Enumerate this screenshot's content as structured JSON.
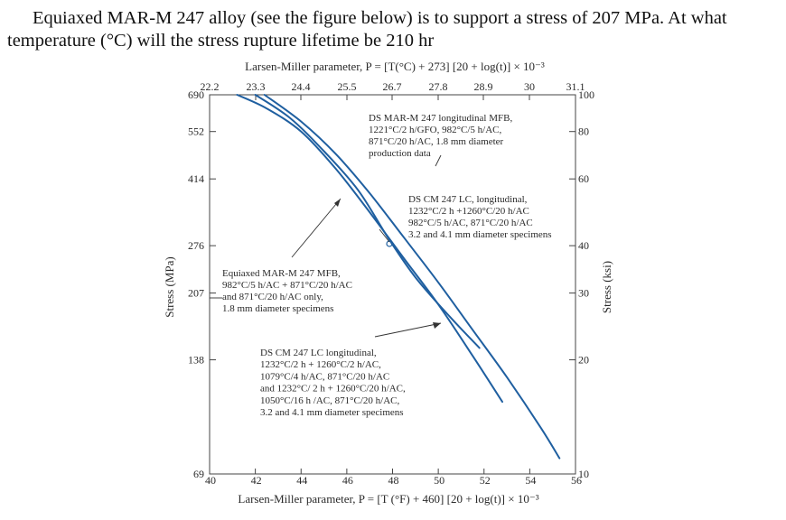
{
  "question": {
    "line1": "Equiaxed MAR-M 247 alloy (see the figure below) is to support a stress of 207 MPa. At what",
    "line2": "temperature (°C) will the stress rupture lifetime be 210 hr"
  },
  "chart_data": {
    "type": "line",
    "top_axis_label": "Larsen-Miller parameter, P = [T(°C) + 273] [20 + log(t)] × 10⁻³",
    "bottom_axis_label": "Larsen-Miller parameter, P = [T (°F) + 460] [20 + log(t)] × 10⁻³",
    "left_axis_label": "Stress (MPa)",
    "right_axis_label": "Stress (ksi)",
    "top_ticks": [
      "22.2",
      "23.3",
      "24.4",
      "25.5",
      "26.7",
      "27.8",
      "28.9",
      "30",
      "31.1"
    ],
    "bottom_ticks": [
      "40",
      "42",
      "44",
      "46",
      "48",
      "50",
      "52",
      "54",
      "56"
    ],
    "left_ticks": [
      "690",
      "552",
      "414",
      "276",
      "207",
      "138",
      "69"
    ],
    "right_ticks": [
      "100",
      "80",
      "60",
      "40",
      "30",
      "20",
      "10"
    ],
    "xlim": [
      40,
      56
    ],
    "ylim_ksi": [
      10,
      100
    ],
    "yscale": "log",
    "grid": false,
    "series": [
      {
        "name": "Equiaxed MAR-M 247",
        "x": [
          41.2,
          42.5,
          44,
          45.5,
          47,
          48.5,
          50,
          51.5,
          52.8
        ],
        "y": [
          100,
          92,
          80,
          64,
          49,
          37,
          28,
          20.5,
          15.5
        ]
      },
      {
        "name": "DS MAR-M 247",
        "x": [
          42,
          43.5,
          45,
          46.5,
          47.8,
          49,
          50.5,
          51.8
        ],
        "y": [
          100,
          87,
          71,
          56,
          42,
          33,
          26,
          21.5
        ]
      },
      {
        "name": "DS CM 247 LC",
        "x": [
          42.4,
          44,
          45.5,
          47,
          48.5,
          50,
          51.5,
          53,
          54.5,
          55.3
        ],
        "y": [
          100,
          85,
          70,
          55,
          42,
          32,
          24,
          18,
          13.2,
          11
        ]
      }
    ],
    "annotations": [
      {
        "id": "dsmar",
        "lines": [
          "DS MAR-M 247 longitudinal MFB,",
          "1221°C/2 h/GFO, 982°C/5 h/AC,",
          "871°C/20 h/AC, 1.8 mm diameter",
          "production data"
        ]
      },
      {
        "id": "dscm1",
        "lines": [
          "DS CM 247 LC, longitudinal,",
          "1232°C/2 h +1260°C/20 h/AC",
          "982°C/5 h/AC, 871°C/20 h/AC",
          "3.2 and 4.1 mm diameter specimens"
        ]
      },
      {
        "id": "equiax",
        "lines": [
          "Equiaxed MAR-M 247 MFB,",
          "982°C/5 h/AC + 871°C/20 h/AC",
          "and 871°C/20 h/AC only,",
          "1.8 mm diameter specimens"
        ]
      },
      {
        "id": "dscm2",
        "lines": [
          "DS CM 247 LC longitudinal,",
          "1232°C/2 h + 1260°C/2 h/AC,",
          "1079°C/4 h/AC, 871°C/20 h/AC",
          "and 1232°C/ 2 h + 1260°C/20 h/AC,",
          "1050°C/16 h /AC, 871°C/20 h/AC,",
          "3.2 and 4.1 mm diameter specimens"
        ]
      }
    ]
  }
}
